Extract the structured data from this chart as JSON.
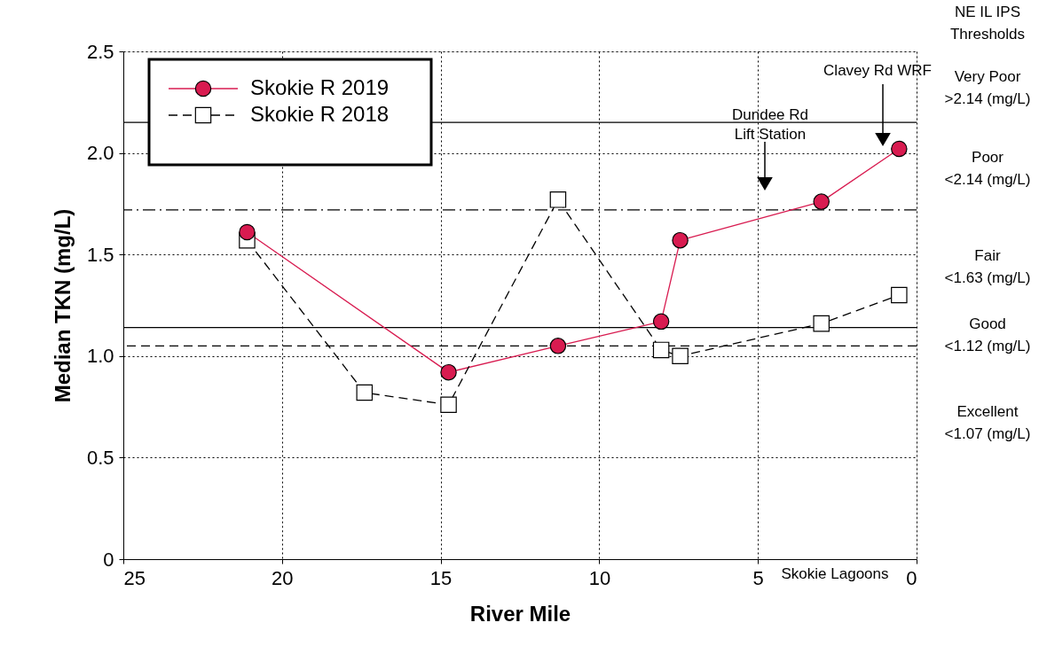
{
  "chart_data": {
    "type": "line",
    "xlabel": "River Mile",
    "ylabel": "Median TKN (mg/L)",
    "xlim": [
      25,
      0
    ],
    "xticks": [
      25,
      20,
      15,
      10,
      5,
      0
    ],
    "ylim": [
      0,
      2.5
    ],
    "yticks": [
      0,
      {
        "value": 0.5,
        "label": "0.5"
      },
      {
        "value": 1,
        "label": "1.0"
      },
      {
        "value": 1.5,
        "label": "1.5"
      },
      {
        "value": 2,
        "label": "2.0"
      },
      {
        "value": 2.5,
        "label": "2.5"
      }
    ],
    "grid": true,
    "legend": "top left",
    "series": [
      {
        "name": "Skokie R 2019",
        "color": "#d81b50",
        "marker": "circle",
        "line_style": "solid",
        "x": [
          21.1,
          14.75,
          11.3,
          8.05,
          7.45,
          3.0,
          0.55
        ],
        "values": [
          1.61,
          0.92,
          1.05,
          1.17,
          1.57,
          1.76,
          2.02
        ]
      },
      {
        "name": "Skokie R 2018",
        "color": "#000000",
        "marker": "square",
        "line_style": "dashed",
        "x": [
          21.1,
          17.4,
          14.75,
          11.3,
          8.05,
          7.45,
          3.0,
          0.55
        ],
        "values": [
          1.57,
          0.82,
          0.76,
          1.77,
          1.03,
          1.0,
          1.16,
          1.3
        ]
      }
    ],
    "ref_lines": [
      {
        "axis": "y",
        "value": 2.15,
        "line_style": "solid"
      },
      {
        "axis": "y",
        "value": 1.72,
        "line_style": "dashdot"
      },
      {
        "axis": "y",
        "value": 1.14,
        "line_style": "solid"
      },
      {
        "axis": "y",
        "value": 1.05,
        "line_style": "dashed"
      }
    ],
    "annotations": [
      "NE IL IPS",
      "Thresholds",
      "Very Poor",
      ">2.14 (mg/L)",
      "Poor",
      "<2.14 (mg/L)",
      "Fair",
      "<1.63 (mg/L)",
      "Good",
      "<1.12 (mg/L)",
      "Excellent",
      "<1.07 (mg/L)",
      "Skokie Lagoons",
      "Dundee Rd\nLift Station",
      "Clavey Rd WRF"
    ]
  }
}
